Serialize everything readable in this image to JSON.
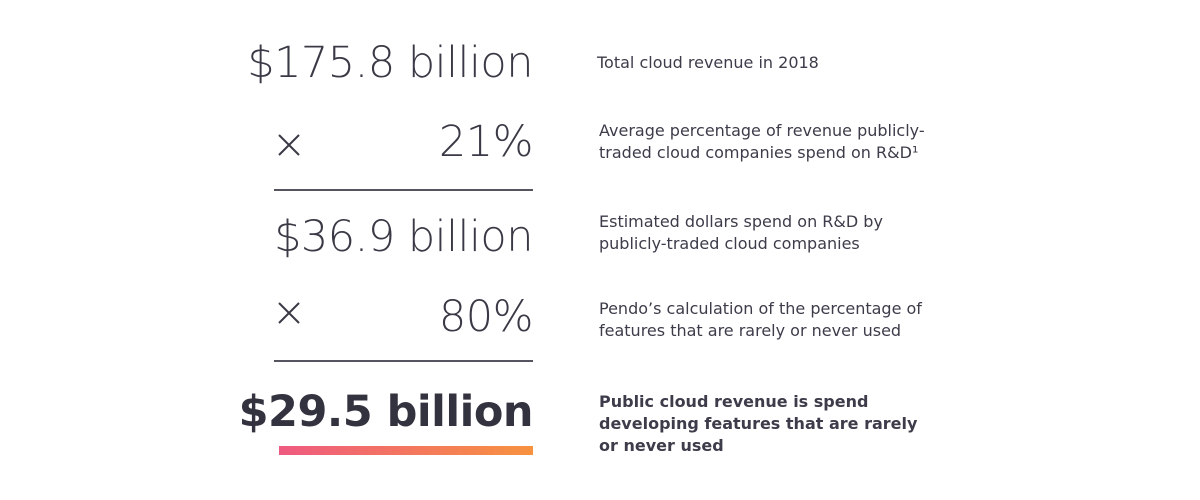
{
  "rows": [
    {
      "figure": "$175.8 billion",
      "description": [
        "Total cloud revenue in 2018"
      ]
    },
    {
      "figure": "21%",
      "description": [
        "Average percentage of revenue publicly-",
        "traded cloud companies spend on R&D¹"
      ]
    },
    {
      "figure": "$36.9 billion",
      "description": [
        "Estimated dollars spend on R&D by",
        "publicly-traded cloud companies"
      ]
    },
    {
      "figure": "80%",
      "description": [
        "Pendo’s calculation of the percentage of",
        "features that are rarely or never used"
      ]
    },
    {
      "figure": "$29.5 billion",
      "description": [
        "Public cloud revenue is spend",
        "developing features that are rarely",
        "or never used"
      ]
    }
  ]
}
